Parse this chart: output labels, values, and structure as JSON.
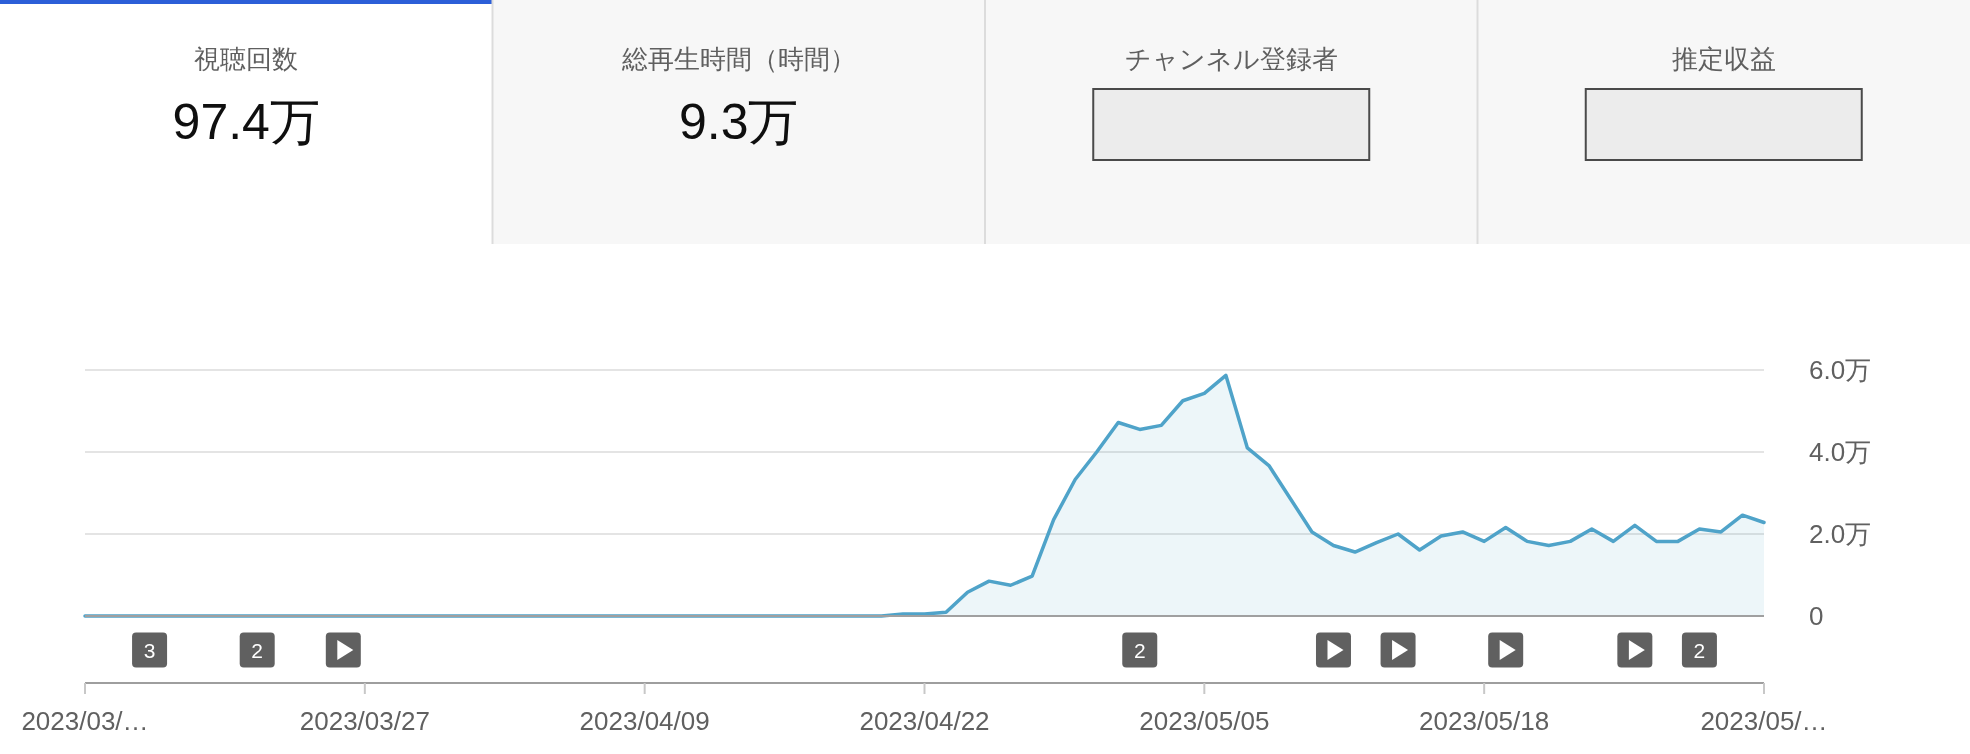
{
  "chart_data": [
    {
      "type": "other",
      "categories": [
        "視聴回数",
        "総再生時間（時間）",
        "チャンネル登録者",
        "推定収益"
      ],
      "value_labels": [
        "97.4万",
        "9.3万",
        null,
        null
      ]
    },
    {
      "type": "area",
      "x": [
        "2023-03-14",
        "2023-04-20",
        "2023-04-21",
        "2023-04-22",
        "2023-04-23",
        "2023-04-24",
        "2023-04-25",
        "2023-04-26",
        "2023-04-27",
        "2023-04-28",
        "2023-04-29",
        "2023-04-30",
        "2023-05-01",
        "2023-05-02",
        "2023-05-03",
        "2023-05-04",
        "2023-05-05",
        "2023-05-06",
        "2023-05-07",
        "2023-05-08",
        "2023-05-09",
        "2023-05-10",
        "2023-05-11",
        "2023-05-12",
        "2023-05-13",
        "2023-05-14",
        "2023-05-15",
        "2023-05-16",
        "2023-05-17",
        "2023-05-18",
        "2023-05-19",
        "2023-05-20",
        "2023-05-21",
        "2023-05-22",
        "2023-05-23",
        "2023-05-24",
        "2023-05-25",
        "2023-05-26",
        "2023-05-27",
        "2023-05-28",
        "2023-05-29",
        "2023-05-30",
        "2023-05-31"
      ],
      "values": [
        0,
        0,
        0.05,
        0.05,
        0.09,
        0.58,
        0.85,
        0.75,
        0.97,
        2.35,
        3.33,
        4.0,
        4.72,
        4.55,
        4.65,
        5.25,
        5.43,
        5.87,
        4.1,
        3.67,
        2.86,
        2.05,
        1.72,
        1.56,
        1.79,
        2.0,
        1.61,
        1.95,
        2.05,
        1.82,
        2.16,
        1.82,
        1.72,
        1.82,
        2.12,
        1.82,
        2.21,
        1.82,
        1.82,
        2.12,
        2.05,
        2.46,
        2.28
      ],
      "color": "#4fa3c9",
      "xlim": [
        "2023-03-14",
        "2023-05-31"
      ],
      "xticks": [
        {
          "value": "2023-03-14",
          "label": "2023/03/…"
        },
        {
          "value": "2023-03-27",
          "label": "2023/03/27"
        },
        {
          "value": "2023-04-09",
          "label": "2023/04/09"
        },
        {
          "value": "2023-04-22",
          "label": "2023/04/22"
        },
        {
          "value": "2023-05-05",
          "label": "2023/05/05"
        },
        {
          "value": "2023-05-18",
          "label": "2023/05/18"
        },
        {
          "value": "2023-05-31",
          "label": "2023/05/…"
        }
      ],
      "ylim": [
        0,
        6
      ],
      "yticks": [
        0,
        {
          "value": 2,
          "label": "2.0万"
        },
        {
          "value": 4,
          "label": "4.0万"
        },
        {
          "value": 6,
          "label": "6.0万"
        }
      ],
      "grid": "y",
      "annotations": [
        "3",
        "2",
        "2",
        "2"
      ]
    }
  ]
}
